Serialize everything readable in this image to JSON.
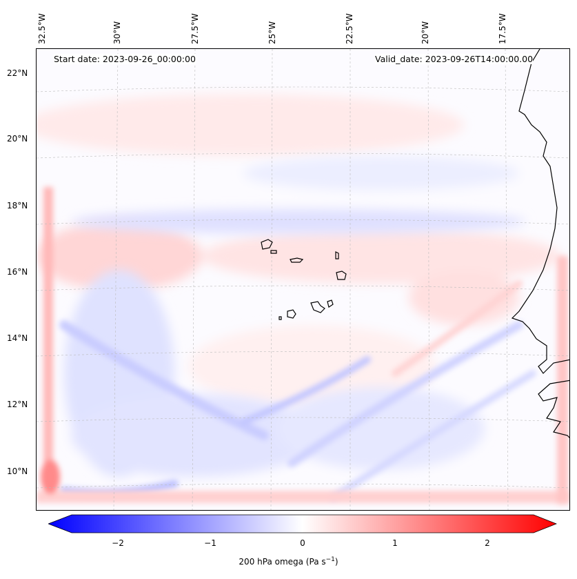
{
  "header": {
    "start_date": "Start date: 2023-09-26_00:00:00",
    "valid_date": "Valid_date: 2023-09-26T14:00:00.00"
  },
  "axes": {
    "longitude_labels": [
      "32.5°W",
      "30°W",
      "27.5°W",
      "25°W",
      "22.5°W",
      "20°W",
      "17.5°W"
    ],
    "latitude_labels": [
      "22°N",
      "20°N",
      "18°N",
      "16°N",
      "14°N",
      "12°N",
      "10°N"
    ]
  },
  "colorbar": {
    "tick_labels": [
      "−2",
      "−1",
      "0",
      "1",
      "2"
    ],
    "tick_values": [
      -2,
      -1,
      0,
      1,
      2
    ],
    "min": -2.5,
    "max": 2.5,
    "label_prefix": "200 hPa omega (Pa s",
    "label_exponent": "−1",
    "label_suffix": ")",
    "color_low": "#0000ff",
    "color_mid": "#ffffff",
    "color_high": "#ff0000"
  }
}
